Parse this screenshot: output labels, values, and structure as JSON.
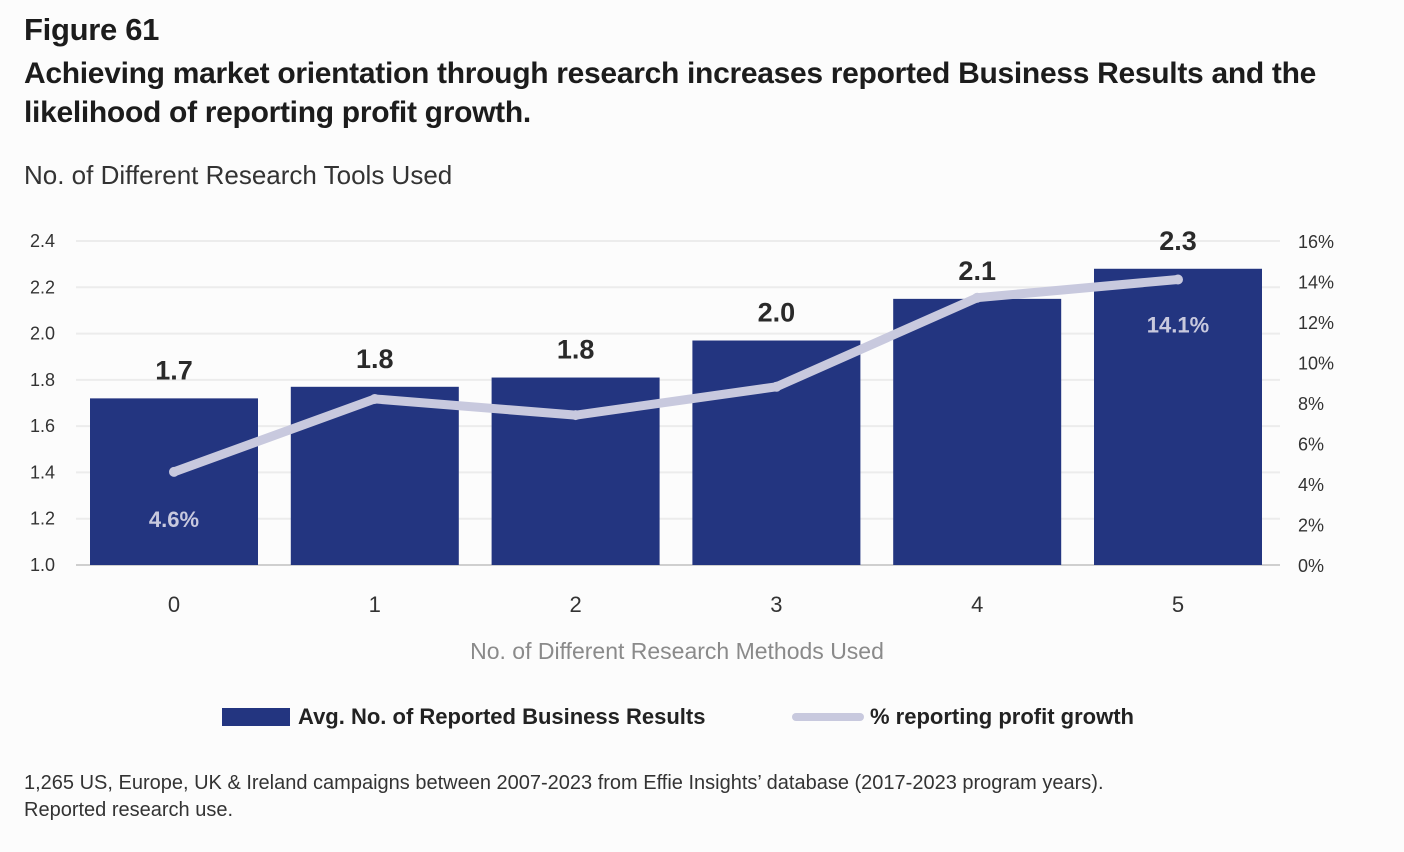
{
  "header": {
    "figure_label": "Figure 61",
    "headline": "Achieving market orientation through research increases reported Business Results and the likelihood of reporting profit growth."
  },
  "chart_data": {
    "type": "bar",
    "subtitle": "No. of Different Research Tools Used",
    "xlabel": "No. of Different Research Methods Used",
    "categories": [
      "0",
      "1",
      "2",
      "3",
      "4",
      "5"
    ],
    "series": [
      {
        "name": "Avg. No. of Reported Business Results",
        "type": "bar",
        "axis": "left",
        "color": "#233580",
        "values": [
          1.72,
          1.77,
          1.81,
          1.97,
          2.15,
          2.28
        ],
        "labels": [
          "1.7",
          "1.8",
          "1.8",
          "2.0",
          "2.1",
          "2.3"
        ]
      },
      {
        "name": "% reporting profit growth",
        "type": "line",
        "axis": "right",
        "color": "#c8c9de",
        "values": [
          4.6,
          8.2,
          7.4,
          8.8,
          13.2,
          14.1
        ],
        "point_labels": [
          "4.6%",
          "",
          "",
          "",
          "",
          "14.1%"
        ]
      }
    ],
    "y_left": {
      "range": [
        1.0,
        2.4
      ],
      "ticks": [
        "1.0",
        "1.2",
        "1.4",
        "1.6",
        "1.8",
        "2.0",
        "2.2",
        "2.4"
      ]
    },
    "y_right": {
      "range": [
        0,
        16
      ],
      "ticks": [
        "0%",
        "2%",
        "4%",
        "6%",
        "8%",
        "10%",
        "12%",
        "14%",
        "16%"
      ]
    },
    "grid": true,
    "legend_position": "bottom-center"
  },
  "footnote": {
    "line1": "1,265 US, Europe, UK & Ireland campaigns between 2007-2023 from Effie Insights’ database (2017-2023 program years).",
    "line2": "Reported research use."
  }
}
